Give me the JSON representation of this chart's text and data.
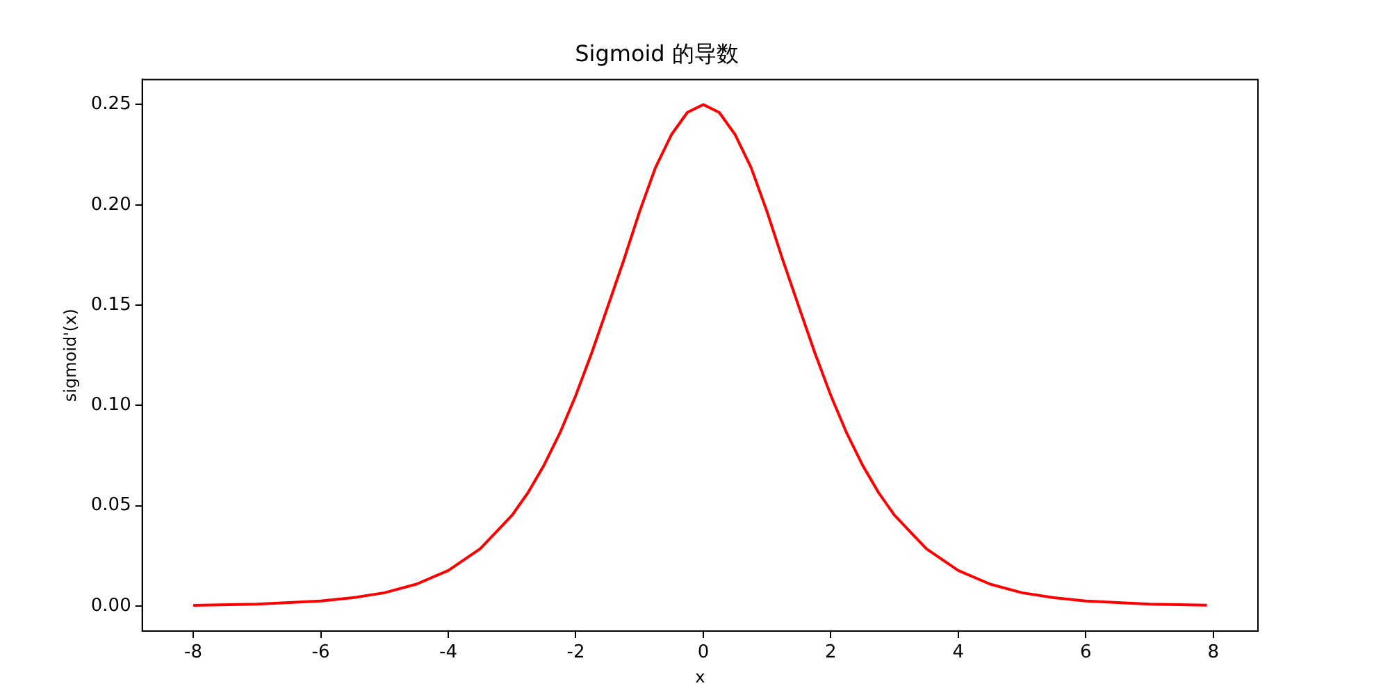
{
  "chart_data": {
    "type": "line",
    "title": "Sigmoid 的导数",
    "xlabel": "x",
    "ylabel": "sigmoid'(x)",
    "xlim": [
      -8.8,
      8.7
    ],
    "xticks": [
      -8,
      -6,
      -4,
      -2,
      0,
      2,
      4,
      6,
      8
    ],
    "ylim": [
      -0.0125,
      0.2625
    ],
    "yticks": [
      {
        "value": 0,
        "label": "0.00"
      },
      {
        "value": 0.05,
        "label": "0.05"
      },
      {
        "value": 0.1,
        "label": "0.10"
      },
      {
        "value": 0.15,
        "label": "0.15"
      },
      {
        "value": 0.2,
        "label": "0.20"
      },
      {
        "value": 0.25,
        "label": "0.25"
      }
    ],
    "grid": false,
    "legend": false,
    "marker": "none",
    "line_style": "solid",
    "series": [
      {
        "color": "#ff0000",
        "x": [
          -8,
          -7,
          -6,
          -5.5,
          -5,
          -4.5,
          -4,
          -3.5,
          -3,
          -2.75,
          -2.5,
          -2.25,
          -2,
          -1.75,
          -1.5,
          -1.25,
          -1,
          -0.75,
          -0.5,
          -0.25,
          0,
          0.25,
          0.5,
          0.75,
          1,
          1.25,
          1.5,
          1.75,
          2,
          2.25,
          2.5,
          2.75,
          3,
          3.5,
          4,
          4.5,
          5,
          5.5,
          6,
          7,
          7.9
        ],
        "values": [
          0.0003,
          0.0009,
          0.0025,
          0.0041,
          0.0066,
          0.0109,
          0.0177,
          0.0285,
          0.0452,
          0.0565,
          0.0701,
          0.0862,
          0.105,
          0.1262,
          0.1491,
          0.1722,
          0.1966,
          0.2186,
          0.235,
          0.2461,
          0.25,
          0.2461,
          0.235,
          0.2186,
          0.1966,
          0.1722,
          0.1491,
          0.1262,
          0.105,
          0.0862,
          0.0701,
          0.0565,
          0.0452,
          0.0285,
          0.0177,
          0.0109,
          0.0066,
          0.0041,
          0.0025,
          0.0009,
          0.0004
        ]
      }
    ]
  }
}
